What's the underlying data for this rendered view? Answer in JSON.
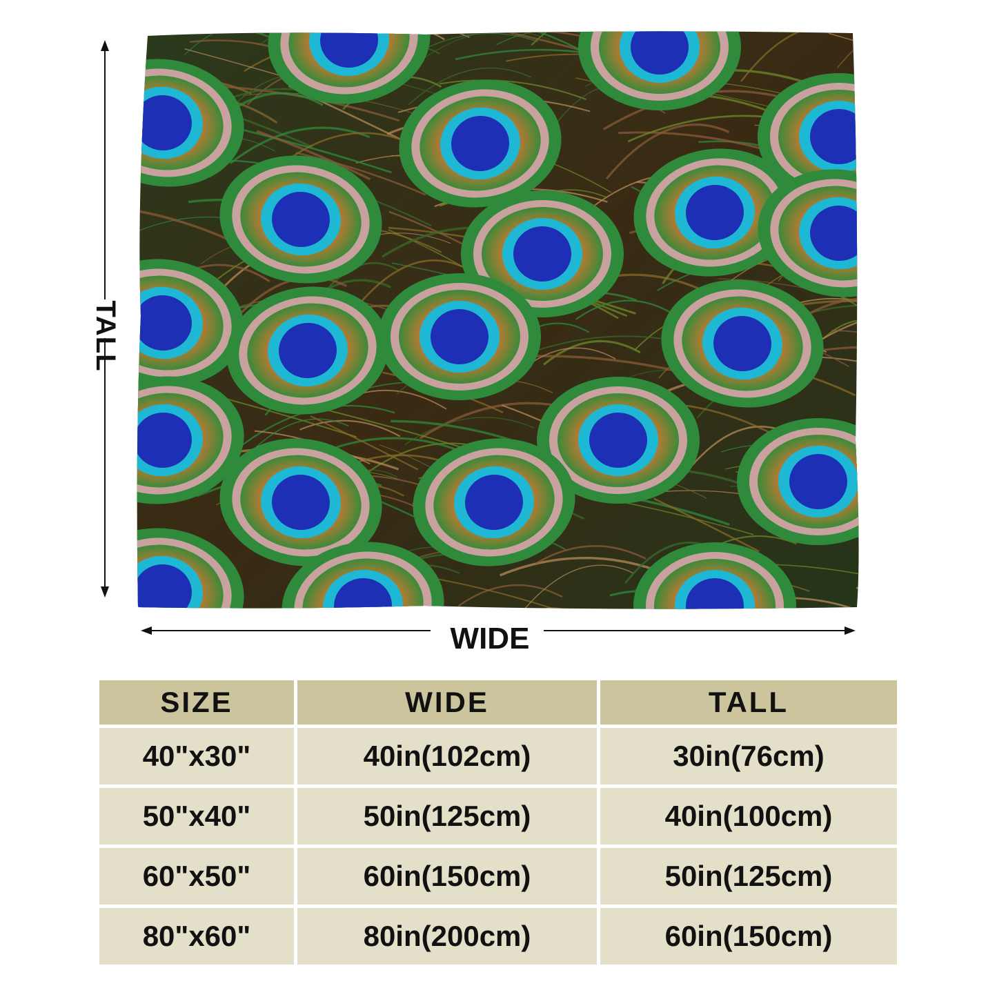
{
  "dimension_labels": {
    "tall": "TALL",
    "wide": "WIDE"
  },
  "colors": {
    "header_bg": "#cbc49d",
    "row_bg": "#e3dfc8",
    "feather_blue": "#1c2fb5",
    "feather_cyan": "#1fb8d4",
    "feather_green": "#2f8a3c",
    "feather_bronze": "#8a6a2a"
  },
  "size_table": {
    "headers": [
      "SIZE",
      "WIDE",
      "TALL"
    ],
    "rows": [
      [
        "40\"x30\"",
        "40in(102cm)",
        "30in(76cm)"
      ],
      [
        "50\"x40\"",
        "50in(125cm)",
        "40in(100cm)"
      ],
      [
        "60\"x50\"",
        "60in(150cm)",
        "50in(125cm)"
      ],
      [
        "80\"x60\"",
        "80in(200cm)",
        "60in(150cm)"
      ]
    ]
  }
}
